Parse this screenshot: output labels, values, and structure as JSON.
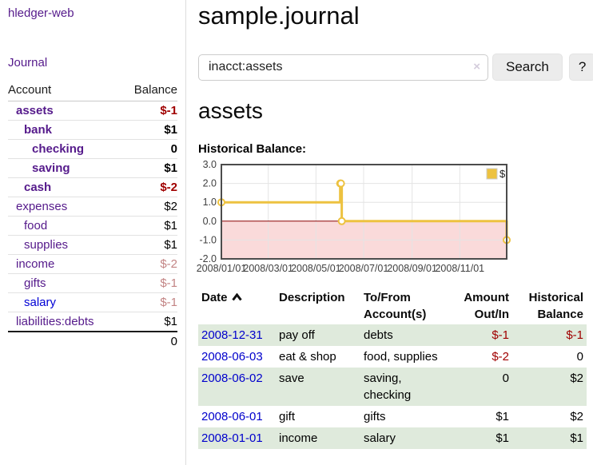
{
  "sidebar": {
    "brand": "hledger-web",
    "journal_label": "Journal",
    "accounts_header": {
      "account": "Account",
      "balance": "Balance"
    },
    "accounts": [
      {
        "name": "assets",
        "balance": "$-1",
        "indent": 1,
        "bold": true,
        "balance_tone": "negative"
      },
      {
        "name": "bank",
        "balance": "$1",
        "indent": 2,
        "bold": true,
        "balance_tone": "normal"
      },
      {
        "name": "checking",
        "balance": "0",
        "indent": 3,
        "bold": true,
        "balance_tone": "normal"
      },
      {
        "name": "saving",
        "balance": "$1",
        "indent": 3,
        "bold": true,
        "balance_tone": "normal"
      },
      {
        "name": "cash",
        "balance": "$-2",
        "indent": 2,
        "bold": true,
        "balance_tone": "negative"
      },
      {
        "name": "expenses",
        "balance": "$2",
        "indent": 1,
        "bold": false,
        "balance_tone": "normal"
      },
      {
        "name": "food",
        "balance": "$1",
        "indent": 2,
        "bold": false,
        "balance_tone": "normal"
      },
      {
        "name": "supplies",
        "balance": "$1",
        "indent": 2,
        "bold": false,
        "balance_tone": "normal"
      },
      {
        "name": "income",
        "balance": "$-2",
        "indent": 1,
        "bold": false,
        "balance_tone": "negative-soft"
      },
      {
        "name": "gifts",
        "balance": "$-1",
        "indent": 2,
        "bold": false,
        "balance_tone": "negative-soft"
      },
      {
        "name": "salary",
        "balance": "$-1",
        "indent": 2,
        "bold": false,
        "balance_tone": "negative-soft",
        "blue_link": true
      },
      {
        "name": "liabilities:debts",
        "balance": "$1",
        "indent": 1,
        "bold": false,
        "balance_tone": "normal"
      }
    ],
    "total": "0"
  },
  "header": {
    "title": "sample.journal"
  },
  "search": {
    "value": "inacct:assets",
    "clear_icon": "×",
    "button_label": "Search",
    "help_label": "?"
  },
  "account_page": {
    "heading": "assets",
    "chart_label": "Historical Balance:"
  },
  "chart_data": {
    "type": "line",
    "step": true,
    "title": "Historical Balance:",
    "series": [
      {
        "name": "$",
        "color": "#edc240",
        "points": [
          {
            "x": "2008-01-01",
            "y": 1
          },
          {
            "x": "2008-06-01",
            "y": 2
          },
          {
            "x": "2008-06-02",
            "y": 2
          },
          {
            "x": "2008-06-03",
            "y": 0
          },
          {
            "x": "2008-12-31",
            "y": -1
          }
        ]
      }
    ],
    "xlim": [
      "2008-01-01",
      "2008-12-31"
    ],
    "ylim": [
      -2,
      3
    ],
    "y_ticks": [
      3,
      2,
      1,
      0,
      -1,
      -2
    ],
    "y_tick_labels": [
      "3.0",
      "2.0",
      "1.0",
      "0.0",
      "-1.0",
      "-2.0"
    ],
    "x_ticks": [
      "2008-01-01",
      "2008-03-01",
      "2008-05-01",
      "2008-07-01",
      "2008-09-01",
      "2008-11-01"
    ],
    "x_tick_labels": [
      "2008/01/01",
      "2008/03/01",
      "2008/05/01",
      "2008/07/01",
      "2008/09/01",
      "2008/11/01"
    ],
    "legend_position": "top-right",
    "grid": true,
    "negative_region_color": "#fadada",
    "zero_line_color": "#8b0000",
    "frame_color": "#4c4c4c",
    "gridline_color": "#e4e4e4"
  },
  "register": {
    "columns": [
      "Date",
      "Description",
      "To/From Account(s)",
      "Amount Out/In",
      "Historical Balance"
    ],
    "sort": {
      "column": "Date",
      "direction": "ascending"
    },
    "rows": [
      {
        "date": "2008-12-31",
        "description": "pay off",
        "accounts": "debts",
        "amount": "$-1",
        "balance": "$-1"
      },
      {
        "date": "2008-06-03",
        "description": "eat & shop",
        "accounts": "food, supplies",
        "amount": "$-2",
        "balance": "0"
      },
      {
        "date": "2008-06-02",
        "description": "save",
        "accounts": "saving, checking",
        "amount": "0",
        "balance": "$2"
      },
      {
        "date": "2008-06-01",
        "description": "gift",
        "accounts": "gifts",
        "amount": "$1",
        "balance": "$2"
      },
      {
        "date": "2008-01-01",
        "description": "income",
        "accounts": "salary",
        "amount": "$1",
        "balance": "$1"
      }
    ]
  }
}
